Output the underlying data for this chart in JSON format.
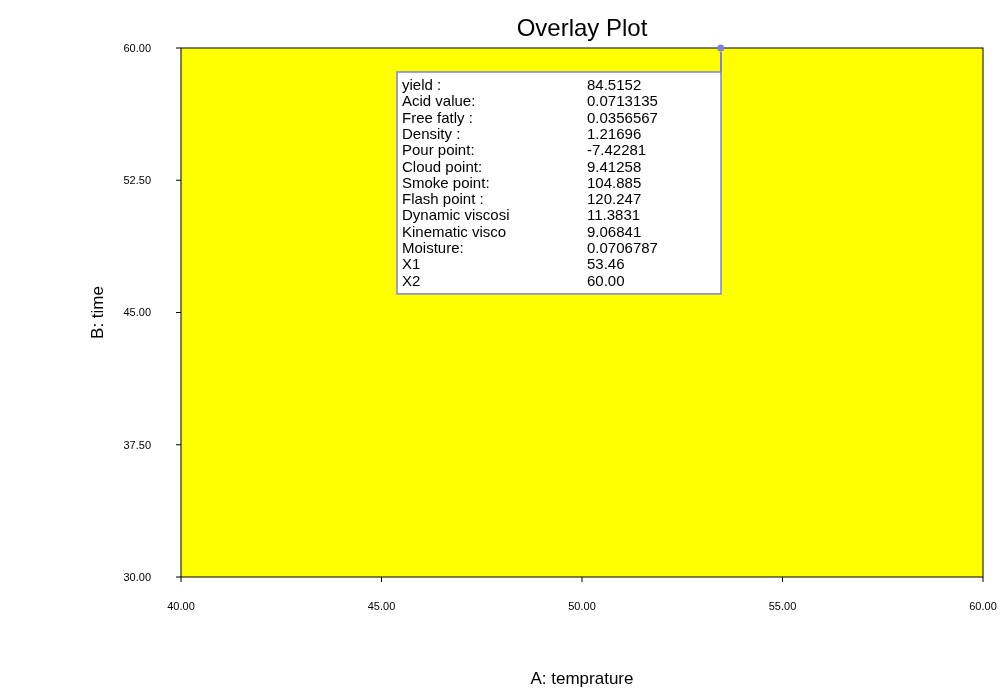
{
  "chart_data": {
    "type": "scatter",
    "marker": "circle",
    "x": [
      53.46
    ],
    "series": [
      {
        "color": "#8080e0",
        "values": [
          60
        ]
      }
    ],
    "bands": [
      {
        "axis": "y",
        "from": 30,
        "to": 60,
        "color": "#ffff00"
      }
    ],
    "title": "Overlay Plot",
    "xlabel": "A: temprature",
    "ylabel": "B: time",
    "xlim": [
      40,
      60
    ],
    "xticks": [
      {
        "value": 40,
        "label": "40.00"
      },
      {
        "value": 45,
        "label": "45.00"
      },
      {
        "value": 50,
        "label": "50.00"
      },
      {
        "value": 55,
        "label": "55.00"
      },
      {
        "value": 60,
        "label": "60.00"
      }
    ],
    "ylim": [
      30,
      60
    ],
    "yticks": [
      {
        "value": 30,
        "label": "30.00"
      },
      {
        "value": 37.5,
        "label": "37.50"
      },
      {
        "value": 45,
        "label": "45.00"
      },
      {
        "value": 52.5,
        "label": "52.50"
      },
      {
        "value": 60,
        "label": "60.00"
      }
    ],
    "annotations": [
      "yield :",
      "84.5152",
      "Acid value:",
      "0.0713135",
      "Free fatly :",
      "0.0356567",
      "Density :",
      "1.21696",
      "Pour point:",
      "-7.42281",
      "Cloud point:",
      "9.41258",
      "Smoke point:",
      "104.885",
      "Flash point :",
      "120.247",
      "Dynamic viscosi",
      "11.3831",
      "Kinematic visco",
      "9.06841",
      "Moisture:",
      "0.0706787",
      "X1",
      "53.46",
      "X2",
      "60.00"
    ]
  }
}
